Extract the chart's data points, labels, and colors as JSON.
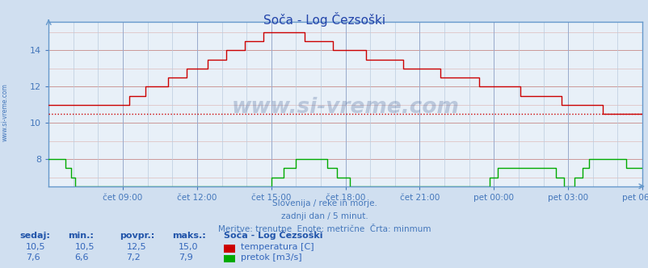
{
  "title": "Soča - Log Čezsoški",
  "bg_color": "#d0dff0",
  "plot_bg_color": "#e8f0f8",
  "axis_color": "#6699cc",
  "tick_color": "#4477bb",
  "title_color": "#2244aa",
  "subtitle_lines": [
    "Slovenija / reke in morje.",
    "zadnji dan / 5 minut.",
    "Meritve: trenutne  Enote: metrične  Črta: minmum"
  ],
  "watermark": "www.si-vreme.com",
  "x_tick_labels": [
    "čet 09:00",
    "čet 12:00",
    "čet 15:00",
    "čet 18:00",
    "čet 21:00",
    "pet 00:00",
    "pet 03:00",
    "pet 06:00"
  ],
  "x_tick_positions": [
    36,
    72,
    108,
    144,
    180,
    216,
    252,
    288
  ],
  "n_points": 289,
  "ylim": [
    6.5,
    15.6
  ],
  "yticks": [
    8,
    10,
    12,
    14
  ],
  "temp_color": "#cc0000",
  "flow_color": "#00aa00",
  "dotted_line_temp": 10.5,
  "dotted_line_color": "#cc0000",
  "table_header_color": "#2255aa",
  "table_data_color": "#3366bb",
  "legend_title": "Soča - Log Čezsoški",
  "temp_sedaj": "10,5",
  "temp_min": "10,5",
  "temp_povpr": "12,5",
  "temp_maks": "15,0",
  "flow_sedaj": "7,6",
  "flow_min": "6,6",
  "flow_povpr": "7,2",
  "flow_maks": "7,9",
  "watermark_color": "#1a3a7a",
  "left_label": "www.si-vreme.com",
  "minor_hgrid_color": "#ddbbbb",
  "major_hgrid_color": "#cc9999",
  "minor_vgrid_color": "#bbccdd",
  "major_vgrid_color": "#99aacc"
}
